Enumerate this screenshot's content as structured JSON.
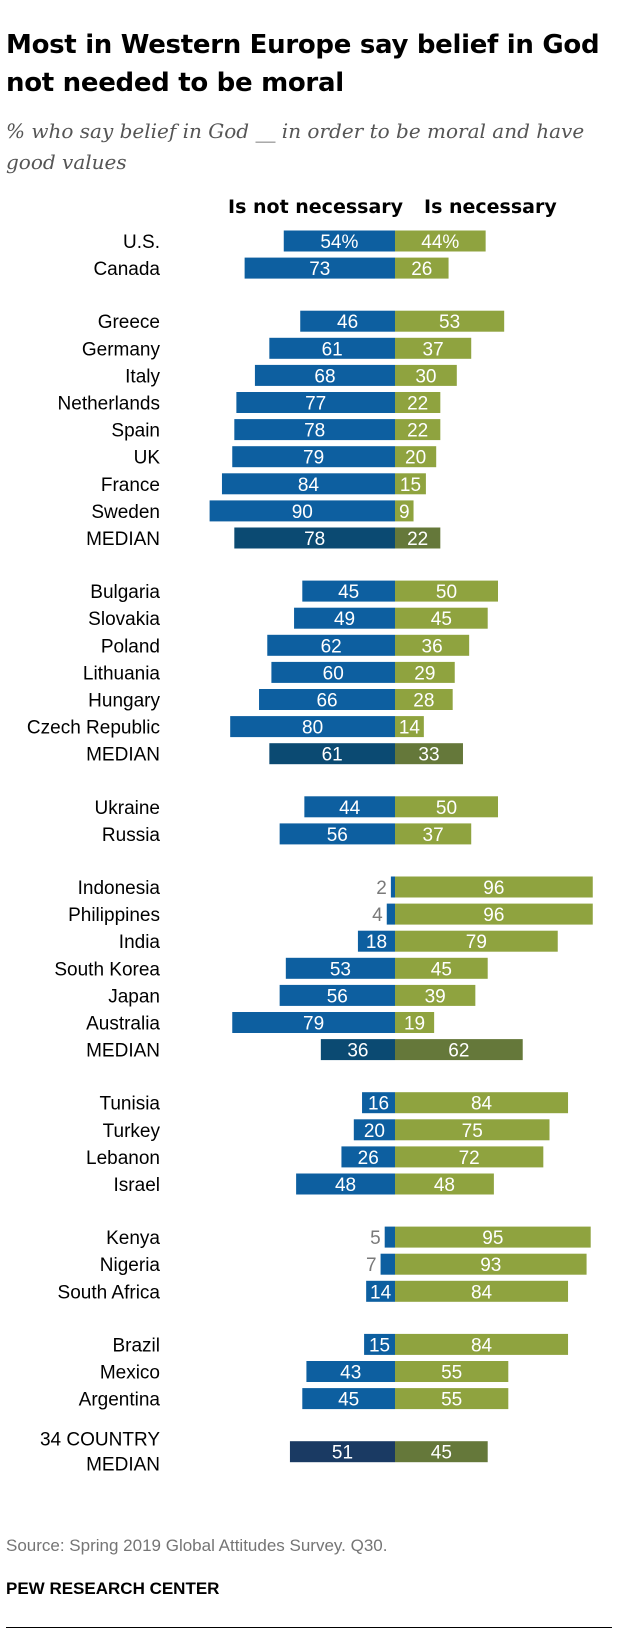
{
  "title": "Most in Western Europe say belief in God not needed to be moral",
  "subtitle": "% who say belief in God __ in order to be moral and have good values",
  "source": "Source: Spring 2019 Global Attitudes Survey. Q30.",
  "brand": "PEW RESEARCH CENTER",
  "colors": {
    "not_necessary": "#0d5fa0",
    "necessary": "#8fa33f",
    "median_not_necessary": "#0b4a72",
    "median_necessary": "#65783a",
    "overall_median_not_necessary": "#1a3a63",
    "small_value_label": "#7a7a7a"
  },
  "chart_data": {
    "type": "bar",
    "orientation": "horizontal-diverging",
    "series": [
      {
        "name": "Is not necessary",
        "direction": "left"
      },
      {
        "name": "Is necessary",
        "direction": "right"
      }
    ],
    "groups": [
      {
        "rows": [
          {
            "label": "U.S.",
            "not_necessary": 54,
            "necessary": 44,
            "not_necessary_label": "54%",
            "necessary_label": "44%"
          },
          {
            "label": "Canada",
            "not_necessary": 73,
            "necessary": 26
          }
        ]
      },
      {
        "rows": [
          {
            "label": "Greece",
            "not_necessary": 46,
            "necessary": 53
          },
          {
            "label": "Germany",
            "not_necessary": 61,
            "necessary": 37
          },
          {
            "label": "Italy",
            "not_necessary": 68,
            "necessary": 30
          },
          {
            "label": "Netherlands",
            "not_necessary": 77,
            "necessary": 22
          },
          {
            "label": "Spain",
            "not_necessary": 78,
            "necessary": 22
          },
          {
            "label": "UK",
            "not_necessary": 79,
            "necessary": 20
          },
          {
            "label": "France",
            "not_necessary": 84,
            "necessary": 15
          },
          {
            "label": "Sweden",
            "not_necessary": 90,
            "necessary": 9
          },
          {
            "label": "MEDIAN",
            "not_necessary": 78,
            "necessary": 22,
            "median": true
          }
        ]
      },
      {
        "rows": [
          {
            "label": "Bulgaria",
            "not_necessary": 45,
            "necessary": 50
          },
          {
            "label": "Slovakia",
            "not_necessary": 49,
            "necessary": 45
          },
          {
            "label": "Poland",
            "not_necessary": 62,
            "necessary": 36
          },
          {
            "label": "Lithuania",
            "not_necessary": 60,
            "necessary": 29
          },
          {
            "label": "Hungary",
            "not_necessary": 66,
            "necessary": 28
          },
          {
            "label": "Czech Republic",
            "not_necessary": 80,
            "necessary": 14
          },
          {
            "label": "MEDIAN",
            "not_necessary": 61,
            "necessary": 33,
            "median": true
          }
        ]
      },
      {
        "rows": [
          {
            "label": "Ukraine",
            "not_necessary": 44,
            "necessary": 50
          },
          {
            "label": "Russia",
            "not_necessary": 56,
            "necessary": 37
          }
        ]
      },
      {
        "rows": [
          {
            "label": "Indonesia",
            "not_necessary": 2,
            "necessary": 96
          },
          {
            "label": "Philippines",
            "not_necessary": 4,
            "necessary": 96
          },
          {
            "label": "India",
            "not_necessary": 18,
            "necessary": 79
          },
          {
            "label": "South Korea",
            "not_necessary": 53,
            "necessary": 45
          },
          {
            "label": "Japan",
            "not_necessary": 56,
            "necessary": 39
          },
          {
            "label": "Australia",
            "not_necessary": 79,
            "necessary": 19
          },
          {
            "label": "MEDIAN",
            "not_necessary": 36,
            "necessary": 62,
            "median": true
          }
        ]
      },
      {
        "rows": [
          {
            "label": "Tunisia",
            "not_necessary": 16,
            "necessary": 84,
            "not_necessary_label": "16"
          },
          {
            "label": "Turkey",
            "not_necessary": 20,
            "necessary": 75
          },
          {
            "label": "Lebanon",
            "not_necessary": 26,
            "necessary": 72
          },
          {
            "label": "Israel",
            "not_necessary": 48,
            "necessary": 48
          }
        ]
      },
      {
        "rows": [
          {
            "label": "Kenya",
            "not_necessary": 5,
            "necessary": 95
          },
          {
            "label": "Nigeria",
            "not_necessary": 7,
            "necessary": 93
          },
          {
            "label": "South Africa",
            "not_necessary": 14,
            "necessary": 84
          }
        ]
      },
      {
        "rows": [
          {
            "label": "Brazil",
            "not_necessary": 15,
            "necessary": 84
          },
          {
            "label": "Mexico",
            "not_necessary": 43,
            "necessary": 55
          },
          {
            "label": "Argentina",
            "not_necessary": 45,
            "necessary": 55
          }
        ]
      },
      {
        "rows": [
          {
            "label": "34 COUNTRY MEDIAN",
            "label_lines": [
              "34 COUNTRY",
              "MEDIAN"
            ],
            "not_necessary": 51,
            "necessary": 45,
            "median": true,
            "overall": true
          }
        ]
      }
    ]
  }
}
